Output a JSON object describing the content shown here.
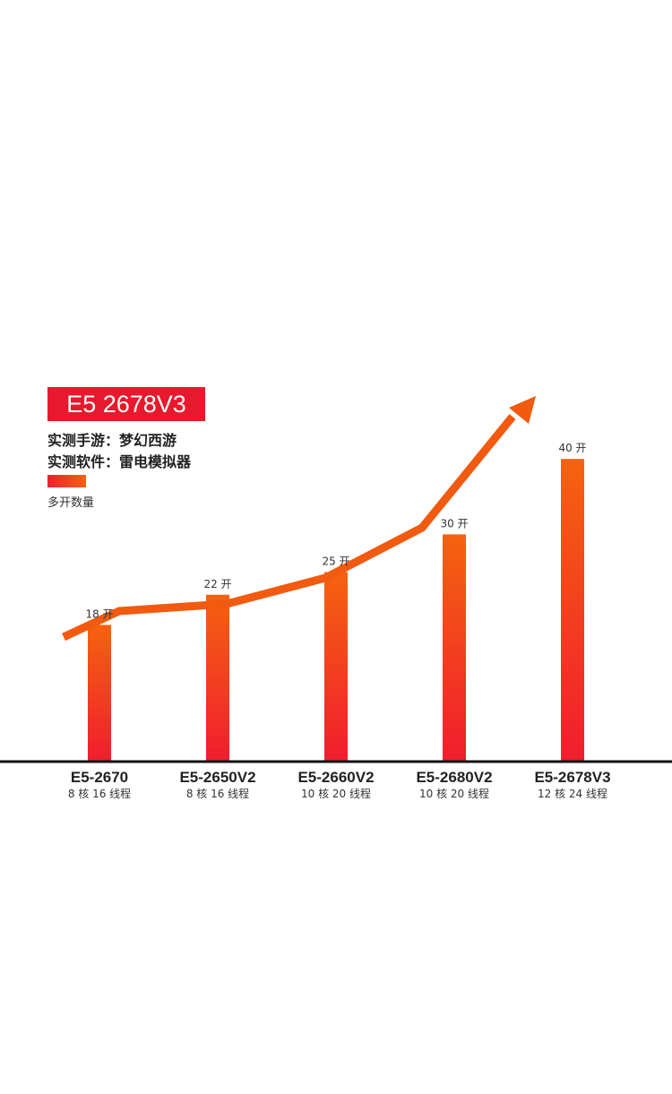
{
  "header": {
    "badge": "E5 2678V3",
    "line1": "实测手游：梦幻西游",
    "line2": "实测软件：雷电模拟器",
    "legend": "多开数量"
  },
  "colors": {
    "badge_bg": "#e8192c",
    "bar_top": "#f4630f",
    "bar_bottom": "#f11d2e",
    "trend_line": "#f15a0f",
    "axis": "#111111"
  },
  "chart_data": {
    "type": "bar",
    "categories": [
      "E5-2670",
      "E5-2650V2",
      "E5-2660V2",
      "E5-2680V2",
      "E5-2678V3"
    ],
    "subtitles": [
      "8 核 16 线程",
      "8 核 16 线程",
      "10 核 20 线程",
      "10 核 20 线程",
      "12 核 24 线程"
    ],
    "series": [
      {
        "values": [
          18,
          22,
          25,
          30,
          40
        ]
      }
    ],
    "data_labels": [
      "18 开",
      "22 开",
      "25 开",
      "30 开",
      "40 开"
    ],
    "legend_position": "top-left",
    "trend_arrow": true,
    "grid": false
  }
}
